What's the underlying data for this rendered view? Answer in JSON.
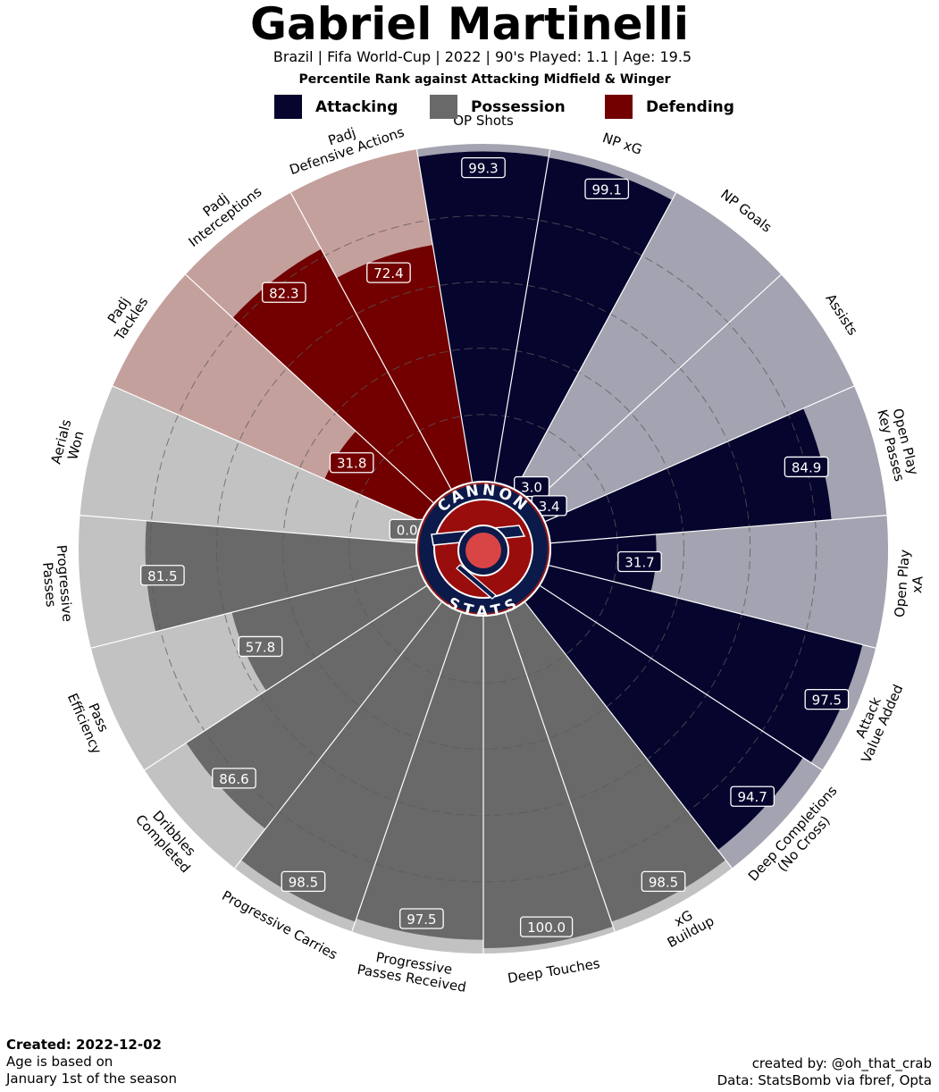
{
  "header": {
    "player_name": "Gabriel Martinelli",
    "subtitle": "Brazil  | Fifa World-Cup | 2022 | 90's Played: 1.1 | Age: 19.5",
    "rank_line": "Percentile Rank against Attacking Midfield & Winger"
  },
  "legend": [
    {
      "label": "Attacking",
      "color": "#05052e"
    },
    {
      "label": "Possession",
      "color": "#696969"
    },
    {
      "label": "Defending",
      "color": "#720000"
    }
  ],
  "logo": {
    "top_text": "CANNON",
    "bottom_text": "STATS"
  },
  "footer": {
    "created": "Created: 2022-12-02",
    "age_note_1": "Age is based on",
    "age_note_2": "January 1st of the season",
    "credit_1": "created by: @oh_that_crab",
    "credit_2": "Data: StatsBomb via fbref, Opta"
  },
  "chart_data": {
    "type": "polar-bar",
    "title": "Gabriel Martinelli",
    "rlim": [
      0,
      100
    ],
    "grid": "dashed rings",
    "legend_placement": "top",
    "group_colors": {
      "Attacking": {
        "bar": "#05052e",
        "bg": "#a3a3b1"
      },
      "Possession": {
        "bar": "#696969",
        "bg": "#c2c2c2"
      },
      "Defending": {
        "bar": "#720000",
        "bg": "#c4a09d"
      }
    },
    "categories": [
      {
        "label": "OP Shots",
        "group": "Attacking",
        "value": 99.3
      },
      {
        "label": "NP xG",
        "group": "Attacking",
        "value": 99.1
      },
      {
        "label": "NP Goals",
        "group": "Attacking",
        "value": 3.0
      },
      {
        "label": "Assists",
        "group": "Attacking",
        "value": 3.4
      },
      {
        "label": "Open Play\nKey Passes",
        "group": "Attacking",
        "value": 84.9
      },
      {
        "label": "Open Play\nxA",
        "group": "Attacking",
        "value": 31.7
      },
      {
        "label": "Attack\nValue Added",
        "group": "Attacking",
        "value": 97.5
      },
      {
        "label": "Deep Completions\n(No Cross)",
        "group": "Attacking",
        "value": 94.7
      },
      {
        "label": "xG\nBuildup",
        "group": "Possession",
        "value": 98.5
      },
      {
        "label": "Deep Touches",
        "group": "Possession",
        "value": 100.0
      },
      {
        "label": "Progressive\nPasses Received",
        "group": "Possession",
        "value": 97.5
      },
      {
        "label": "Progressive Carries",
        "group": "Possession",
        "value": 98.5
      },
      {
        "label": "Dribbles\nCompleted",
        "group": "Possession",
        "value": 86.6
      },
      {
        "label": "Pass\nEfficiency",
        "group": "Possession",
        "value": 57.8
      },
      {
        "label": "Progressive\nPasses",
        "group": "Possession",
        "value": 81.5
      },
      {
        "label": "Aerials\nWon",
        "group": "Possession",
        "value": 0.0
      },
      {
        "label": "Padj\nTackles",
        "group": "Defending",
        "value": 31.8
      },
      {
        "label": "Padj\nInterceptions",
        "group": "Defending",
        "value": 82.3
      },
      {
        "label": "Padj\nDefensive Actions",
        "group": "Defending",
        "value": 72.4
      }
    ]
  }
}
